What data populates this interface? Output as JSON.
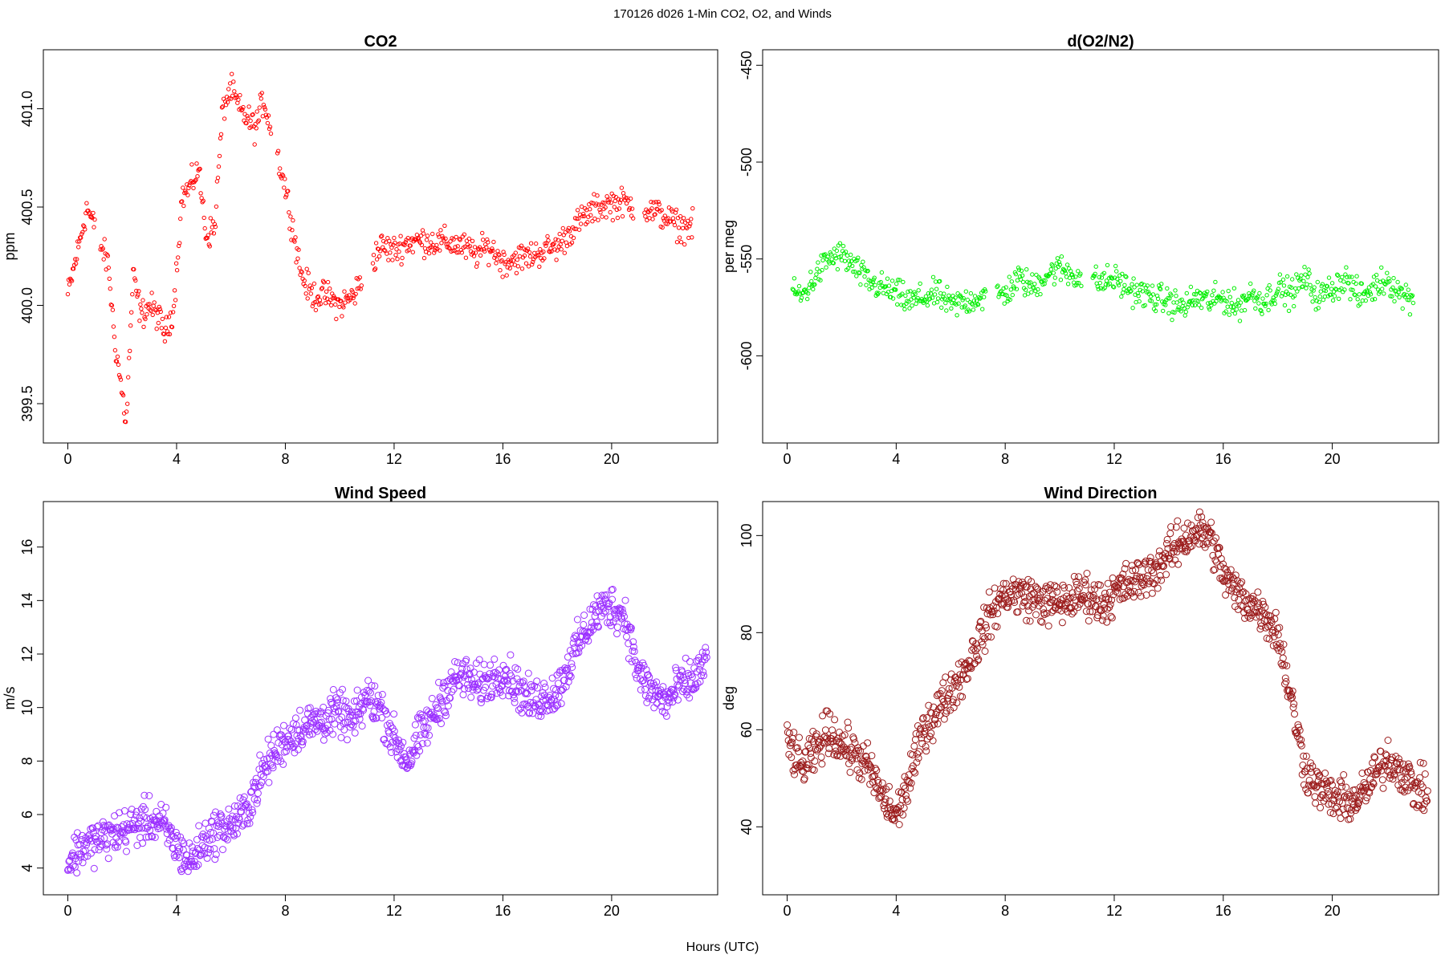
{
  "figure": {
    "title": "170126   d026   1-Min CO2, O2, and Winds",
    "xlabel": "Hours (UTC)"
  },
  "chart_data": [
    {
      "type": "scatter",
      "title": "CO2",
      "ylabel": "ppm",
      "color": "#ff0000",
      "marker_size": "small",
      "xlim": [
        -0.9,
        23.9
      ],
      "ylim": [
        399.3,
        401.3
      ],
      "xticks": [
        0,
        4,
        8,
        12,
        16,
        20
      ],
      "yticks": [
        399.5,
        400.0,
        400.5,
        401.0
      ],
      "ytick_labels": [
        "399.5",
        "400.0",
        "400.5",
        "401.0"
      ],
      "x": [
        0,
        0.4,
        0.7,
        1.5,
        1.7,
        2.0,
        2.15,
        2.4,
        2.7,
        3.0,
        3.3,
        3.6,
        3.9,
        4.2,
        4.5,
        4.8,
        5.1,
        5.4,
        5.7,
        6.0,
        6.3,
        6.6,
        6.9,
        7.2,
        8.0,
        8.6,
        9.0,
        9.5,
        10.0,
        10.5,
        11.5,
        12.0,
        12.5,
        13.0,
        13.5,
        14.0,
        14.5,
        15.0,
        15.5,
        16.0,
        16.5,
        17.0,
        17.5,
        18.0,
        18.5,
        19.0,
        19.5,
        20.0,
        20.5,
        21.5,
        22.0,
        22.5,
        23.0
      ],
      "y": [
        400.05,
        400.3,
        400.5,
        400.2,
        399.85,
        399.55,
        399.4,
        400.15,
        399.95,
        400.0,
        399.95,
        399.85,
        400.0,
        400.55,
        400.6,
        400.7,
        400.35,
        400.4,
        401.0,
        401.1,
        401.0,
        400.95,
        400.9,
        401.05,
        400.6,
        400.15,
        400.05,
        400.05,
        400.0,
        400.05,
        400.3,
        400.28,
        400.32,
        400.33,
        400.32,
        400.32,
        400.3,
        400.26,
        400.3,
        400.22,
        400.24,
        400.25,
        400.28,
        400.3,
        400.38,
        400.45,
        400.5,
        400.52,
        400.52,
        400.48,
        400.45,
        400.4,
        400.4
      ]
    },
    {
      "type": "scatter",
      "title": "d(O2/N2)",
      "ylabel": "per meg",
      "color": "#00ee00",
      "marker_size": "small",
      "xlim": [
        -0.9,
        23.9
      ],
      "ylim": [
        -645,
        -442
      ],
      "xticks": [
        0,
        4,
        8,
        12,
        16,
        20
      ],
      "yticks": [
        -600,
        -550,
        -500,
        -450
      ],
      "ytick_labels": [
        "-600",
        "-550",
        "-500",
        "-450"
      ],
      "x": [
        0.2,
        0.5,
        1.0,
        1.5,
        2.0,
        2.5,
        3.0,
        3.5,
        4.0,
        4.5,
        5.0,
        5.5,
        6.0,
        6.5,
        7.0,
        8.0,
        8.5,
        9.0,
        9.5,
        10.0,
        10.5,
        11.5,
        12.0,
        12.5,
        13.0,
        13.5,
        14.0,
        14.5,
        15.0,
        15.5,
        16.0,
        16.5,
        17.0,
        17.5,
        18.0,
        18.5,
        19.0,
        19.5,
        20.0,
        20.5,
        21.0,
        21.5,
        22.0,
        22.5,
        23.0
      ],
      "y": [
        -565,
        -570,
        -560,
        -550,
        -548,
        -555,
        -562,
        -565,
        -568,
        -572,
        -570,
        -568,
        -574,
        -572,
        -570,
        -568,
        -560,
        -565,
        -558,
        -555,
        -558,
        -562,
        -560,
        -565,
        -568,
        -570,
        -572,
        -575,
        -570,
        -572,
        -570,
        -575,
        -568,
        -572,
        -565,
        -568,
        -560,
        -570,
        -565,
        -560,
        -570,
        -565,
        -560,
        -568,
        -570
      ]
    },
    {
      "type": "scatter",
      "title": "Wind Speed",
      "ylabel": "m/s",
      "color": "#9b30ff",
      "marker_size": "large",
      "xlim": [
        -0.9,
        23.9
      ],
      "ylim": [
        3.0,
        17.7
      ],
      "xticks": [
        0,
        4,
        8,
        12,
        16,
        20
      ],
      "yticks": [
        4,
        6,
        8,
        10,
        12,
        14,
        16
      ],
      "ytick_labels": [
        "4",
        "6",
        "8",
        "10",
        "12",
        "14",
        "16"
      ],
      "x": [
        0,
        0.5,
        1,
        1.5,
        2,
        2.5,
        3,
        3.5,
        4,
        4.5,
        5,
        5.5,
        6,
        6.5,
        7,
        7.5,
        8,
        8.5,
        9,
        9.5,
        10,
        10.5,
        11,
        11.5,
        12,
        12.5,
        13,
        13.5,
        14,
        14.5,
        15,
        15.5,
        16,
        16.5,
        17,
        17.5,
        18,
        18.5,
        19,
        19.5,
        20,
        20.5,
        21,
        21.5,
        22,
        22.5,
        23,
        23.5
      ],
      "y": [
        4.2,
        4.8,
        5.0,
        5.2,
        5.4,
        5.6,
        5.8,
        5.6,
        4.8,
        4.2,
        5.0,
        5.4,
        5.6,
        6.0,
        7.2,
        8.2,
        8.8,
        9.2,
        9.4,
        9.6,
        9.8,
        9.4,
        10.4,
        10.0,
        8.8,
        8.0,
        9.0,
        9.8,
        10.8,
        11.2,
        10.8,
        11.0,
        11.4,
        10.8,
        10.2,
        10.4,
        10.6,
        11.8,
        12.8,
        13.6,
        13.8,
        13.4,
        11.2,
        10.6,
        10.2,
        10.8,
        11.0,
        11.8
      ]
    },
    {
      "type": "scatter",
      "title": "Wind Direction",
      "ylabel": "deg",
      "color": "#9b1b1b",
      "marker_size": "large",
      "xlim": [
        -0.9,
        23.9
      ],
      "ylim": [
        26,
        107
      ],
      "xticks": [
        0,
        4,
        8,
        12,
        16,
        20
      ],
      "yticks": [
        40,
        60,
        80,
        100
      ],
      "ytick_labels": [
        "40",
        "60",
        "80",
        "100"
      ],
      "x": [
        0,
        0.5,
        1,
        1.5,
        2,
        2.5,
        3,
        3.5,
        4,
        4.5,
        5,
        5.5,
        6,
        6.5,
        7,
        7.5,
        8,
        8.5,
        9,
        9.5,
        10,
        10.5,
        11,
        11.5,
        12,
        12.5,
        13,
        13.5,
        14,
        14.5,
        15,
        15.5,
        16,
        16.5,
        17,
        17.5,
        18,
        18.5,
        19,
        19.5,
        20,
        20.5,
        21,
        21.5,
        22,
        22.5,
        23,
        23.5
      ],
      "y": [
        58,
        52,
        55,
        60,
        57,
        55,
        52,
        46,
        42,
        50,
        60,
        64,
        68,
        72,
        78,
        84,
        88,
        88,
        87,
        86,
        86,
        87,
        88,
        86,
        88,
        90,
        91,
        93,
        96,
        99,
        101,
        100,
        92,
        88,
        86,
        84,
        80,
        66,
        52,
        48,
        46,
        45,
        46,
        50,
        54,
        52,
        48,
        47
      ]
    }
  ]
}
